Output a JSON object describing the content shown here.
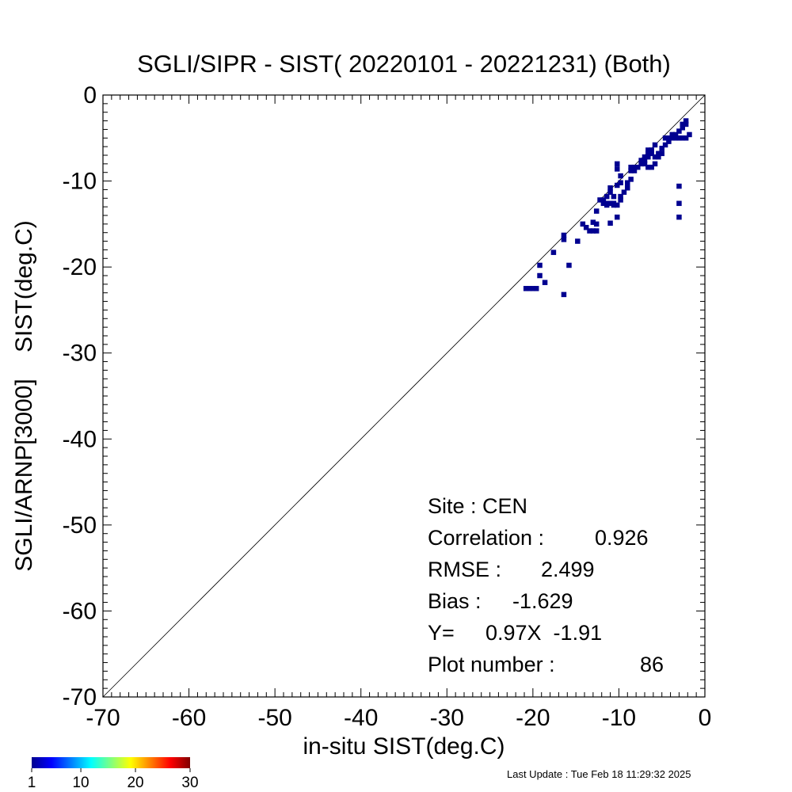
{
  "chart_data": {
    "type": "scatter",
    "title": "SGLI/SIPR - SIST( 20220101 - 20221231) (Both)",
    "xlabel": "in-situ SIST(deg.C)",
    "ylabel": "SGLI/ARNP[3000]    SIST(deg.C)",
    "xlim": [
      -70,
      0
    ],
    "ylim": [
      -70,
      0
    ],
    "xticks": [
      "-70",
      "-60",
      "-50",
      "-40",
      "-30",
      "-20",
      "-10",
      "0"
    ],
    "yticks": [
      "-70",
      "-60",
      "-50",
      "-40",
      "-30",
      "-20",
      "-10",
      "0"
    ],
    "reference_line": "1:1",
    "grid": false,
    "marker_color": "#000090",
    "points": [
      [
        -20.8,
        -22.5
      ],
      [
        -20.4,
        -22.5
      ],
      [
        -20.0,
        -22.5
      ],
      [
        -19.6,
        -22.5
      ],
      [
        -19.2,
        -19.8
      ],
      [
        -19.2,
        -21.0
      ],
      [
        -18.6,
        -21.8
      ],
      [
        -17.6,
        -18.3
      ],
      [
        -16.4,
        -16.3
      ],
      [
        -16.4,
        -16.8
      ],
      [
        -16.4,
        -23.2
      ],
      [
        -15.8,
        -19.8
      ],
      [
        -14.8,
        -17.0
      ],
      [
        -14.2,
        -15.0
      ],
      [
        -13.8,
        -15.4
      ],
      [
        -13.4,
        -15.8
      ],
      [
        -13.0,
        -15.8
      ],
      [
        -12.6,
        -15.8
      ],
      [
        -12.6,
        -15.0
      ],
      [
        -13.0,
        -14.8
      ],
      [
        -12.6,
        -13.5
      ],
      [
        -12.2,
        -12.2
      ],
      [
        -11.8,
        -12.2
      ],
      [
        -11.8,
        -12.6
      ],
      [
        -11.4,
        -12.6
      ],
      [
        -11.4,
        -11.8
      ],
      [
        -11.0,
        -11.3
      ],
      [
        -11.0,
        -12.6
      ],
      [
        -10.6,
        -12.6
      ],
      [
        -10.6,
        -12.8
      ],
      [
        -11.4,
        -12.8
      ],
      [
        -11.0,
        -10.8
      ],
      [
        -10.6,
        -11.8
      ],
      [
        -10.2,
        -12.8
      ],
      [
        -10.2,
        -14.2
      ],
      [
        -11.0,
        -14.9
      ],
      [
        -10.2,
        -10.5
      ],
      [
        -9.8,
        -11.8
      ],
      [
        -9.8,
        -12.2
      ],
      [
        -9.4,
        -11.3
      ],
      [
        -9.0,
        -10.8
      ],
      [
        -9.0,
        -10.2
      ],
      [
        -8.6,
        -9.8
      ],
      [
        -10.2,
        -8.0
      ],
      [
        -10.2,
        -8.6
      ],
      [
        -9.8,
        -9.4
      ],
      [
        -9.8,
        -10.2
      ],
      [
        -8.6,
        -8.8
      ],
      [
        -8.2,
        -8.4
      ],
      [
        -8.6,
        -8.4
      ],
      [
        -7.8,
        -8.4
      ],
      [
        -8.2,
        -8.8
      ],
      [
        -7.4,
        -8.0
      ],
      [
        -7.4,
        -7.6
      ],
      [
        -7.0,
        -7.6
      ],
      [
        -7.0,
        -7.2
      ],
      [
        -6.6,
        -7.2
      ],
      [
        -6.6,
        -6.8
      ],
      [
        -6.2,
        -6.8
      ],
      [
        -6.2,
        -6.4
      ],
      [
        -6.6,
        -6.4
      ],
      [
        -7.0,
        -8.0
      ],
      [
        -6.6,
        -8.4
      ],
      [
        -6.2,
        -8.4
      ],
      [
        -5.8,
        -8.0
      ],
      [
        -5.8,
        -7.2
      ],
      [
        -5.4,
        -7.2
      ],
      [
        -5.4,
        -6.8
      ],
      [
        -5.0,
        -6.8
      ],
      [
        -5.8,
        -5.8
      ],
      [
        -5.0,
        -6.2
      ],
      [
        -4.6,
        -5.8
      ],
      [
        -4.6,
        -5.0
      ],
      [
        -4.2,
        -5.0
      ],
      [
        -4.2,
        -5.4
      ],
      [
        -3.8,
        -5.0
      ],
      [
        -3.8,
        -4.6
      ],
      [
        -3.4,
        -4.6
      ],
      [
        -3.4,
        -5.0
      ],
      [
        -3.0,
        -5.0
      ],
      [
        -2.6,
        -5.0
      ],
      [
        -2.2,
        -5.0
      ],
      [
        -3.0,
        -4.2
      ],
      [
        -2.6,
        -3.8
      ],
      [
        -2.6,
        -3.4
      ],
      [
        -2.2,
        -3.0
      ],
      [
        -2.2,
        -3.4
      ],
      [
        -1.8,
        -4.6
      ],
      [
        -3.0,
        -10.6
      ],
      [
        -3.0,
        -12.6
      ],
      [
        -3.0,
        -14.2
      ]
    ],
    "stats": {
      "site_label": "Site : CEN",
      "correlation_label": "Correlation :",
      "correlation": "0.926",
      "rmse_label": "RMSE :",
      "rmse": "2.499",
      "bias_label": "Bias :",
      "bias": "-1.629",
      "fit_label": "Y=",
      "fit": "0.97X  -1.91",
      "plot_number_label": "Plot number :",
      "plot_number": "86"
    },
    "colorbar": {
      "ticks": [
        "1",
        "10",
        "20",
        "30"
      ],
      "min": 1,
      "max": 30
    }
  },
  "footer": {
    "last_update": "Last Update : Tue Feb 18 11:29:32 2025"
  }
}
